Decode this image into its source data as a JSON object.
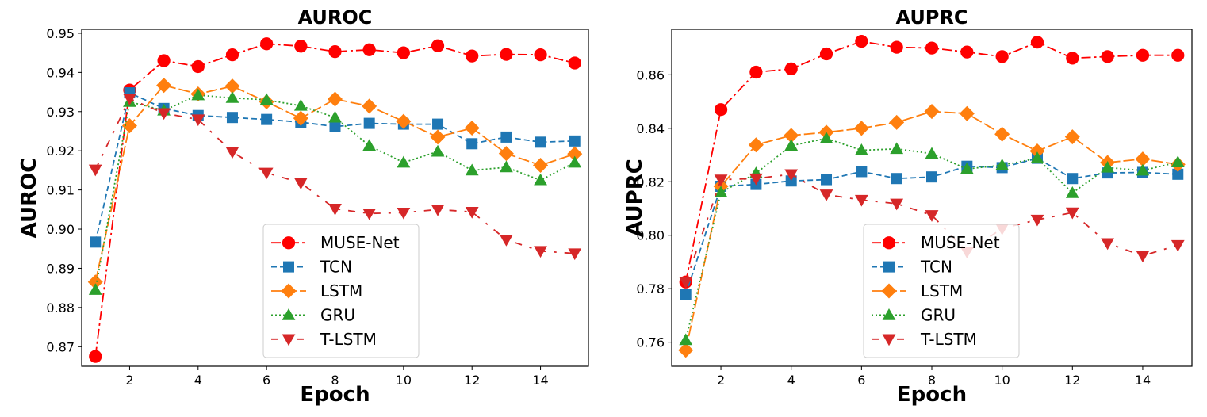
{
  "chart_data": [
    {
      "type": "line",
      "title": "AUROC",
      "xlabel": "Epoch",
      "ylabel": "AUROC",
      "xlim": [
        0.6,
        15.4
      ],
      "ylim": [
        0.865,
        0.951
      ],
      "xticks": [
        2,
        4,
        6,
        8,
        10,
        12,
        14
      ],
      "yticks": [
        0.87,
        0.88,
        0.89,
        0.9,
        0.91,
        0.92,
        0.93,
        0.94,
        0.95
      ],
      "ytick_labels": [
        "0.87",
        "0.88",
        "0.89",
        "0.90",
        "0.91",
        "0.92",
        "0.93",
        "0.94",
        "0.95"
      ],
      "legend_position": "lower-center",
      "x": [
        1,
        2,
        3,
        4,
        5,
        6,
        7,
        8,
        9,
        10,
        11,
        12,
        13,
        14,
        15
      ],
      "series": [
        {
          "name": "MUSE-Net",
          "color": "#ff0000",
          "marker": "circle",
          "dash": "dashdot",
          "values": [
            0.8675,
            0.9355,
            0.943,
            0.9415,
            0.9445,
            0.9473,
            0.9467,
            0.9453,
            0.9458,
            0.945,
            0.9468,
            0.9442,
            0.9446,
            0.9445,
            0.9424
          ]
        },
        {
          "name": "TCN",
          "color": "#1f77b4",
          "marker": "square",
          "dash": "dashed",
          "values": [
            0.8967,
            0.9348,
            0.9308,
            0.929,
            0.9285,
            0.928,
            0.9273,
            0.9262,
            0.927,
            0.9268,
            0.9268,
            0.9218,
            0.9235,
            0.9222,
            0.9225
          ]
        },
        {
          "name": "LSTM",
          "color": "#ff7f0e",
          "marker": "diamond",
          "dash": "longdash",
          "values": [
            0.8865,
            0.9264,
            0.9367,
            0.9345,
            0.9365,
            0.9325,
            0.9283,
            0.9332,
            0.9314,
            0.9275,
            0.9235,
            0.9258,
            0.9193,
            0.9163,
            0.9192
          ]
        },
        {
          "name": "GRU",
          "color": "#2ca02c",
          "marker": "triangle-up",
          "dash": "dotted",
          "values": [
            0.8845,
            0.9325,
            0.9303,
            0.9342,
            0.9335,
            0.933,
            0.9315,
            0.9285,
            0.9213,
            0.917,
            0.9198,
            0.915,
            0.9158,
            0.9125,
            0.917
          ]
        },
        {
          "name": "T-LSTM",
          "color": "#d62728",
          "marker": "triangle-down",
          "dash": "spaceddashdot",
          "values": [
            0.9152,
            0.9333,
            0.9296,
            0.928,
            0.9197,
            0.9144,
            0.9118,
            0.9052,
            0.904,
            0.9042,
            0.905,
            0.9044,
            0.8973,
            0.8944,
            0.8938
          ]
        }
      ]
    },
    {
      "type": "line",
      "title": "AUPRC",
      "xlabel": "Epoch",
      "ylabel": "AUPRC",
      "xlim": [
        0.6,
        15.4
      ],
      "ylim": [
        0.751,
        0.877
      ],
      "xticks": [
        2,
        4,
        6,
        8,
        10,
        12,
        14
      ],
      "yticks": [
        0.76,
        0.78,
        0.8,
        0.82,
        0.84,
        0.86
      ],
      "ytick_labels": [
        "0.76",
        "0.78",
        "0.80",
        "0.82",
        "0.84",
        "0.86"
      ],
      "legend_position": "lower-center",
      "x": [
        1,
        2,
        3,
        4,
        5,
        6,
        7,
        8,
        9,
        10,
        11,
        12,
        13,
        14,
        15
      ],
      "series": [
        {
          "name": "MUSE-Net",
          "color": "#ff0000",
          "marker": "circle",
          "dash": "dashdot",
          "values": [
            0.7825,
            0.847,
            0.861,
            0.8622,
            0.8678,
            0.8725,
            0.8703,
            0.87,
            0.8685,
            0.8668,
            0.8722,
            0.8662,
            0.8668,
            0.8673,
            0.8673
          ]
        },
        {
          "name": "TCN",
          "color": "#1f77b4",
          "marker": "square",
          "dash": "dashed",
          "values": [
            0.7778,
            0.8183,
            0.819,
            0.8203,
            0.8208,
            0.8238,
            0.8212,
            0.8218,
            0.8258,
            0.8253,
            0.8288,
            0.8212,
            0.8233,
            0.8235,
            0.8228
          ]
        },
        {
          "name": "LSTM",
          "color": "#ff7f0e",
          "marker": "diamond",
          "dash": "longdash",
          "values": [
            0.757,
            0.8183,
            0.8338,
            0.8373,
            0.8385,
            0.84,
            0.8422,
            0.8463,
            0.8455,
            0.8378,
            0.8315,
            0.8368,
            0.8272,
            0.8285,
            0.8265
          ]
        },
        {
          "name": "GRU",
          "color": "#2ca02c",
          "marker": "triangle-up",
          "dash": "dotted",
          "values": [
            0.7608,
            0.816,
            0.8232,
            0.8335,
            0.8362,
            0.8318,
            0.8323,
            0.8305,
            0.8248,
            0.8262,
            0.8288,
            0.8158,
            0.8253,
            0.8242,
            0.8273
          ]
        },
        {
          "name": "T-LSTM",
          "color": "#d62728",
          "marker": "triangle-down",
          "dash": "spaceddashdot",
          "values": [
            0.7825,
            0.8208,
            0.8212,
            0.8228,
            0.8152,
            0.8132,
            0.8118,
            0.8075,
            0.7938,
            0.8025,
            0.8058,
            0.8085,
            0.797,
            0.7923,
            0.7963
          ]
        }
      ]
    }
  ]
}
